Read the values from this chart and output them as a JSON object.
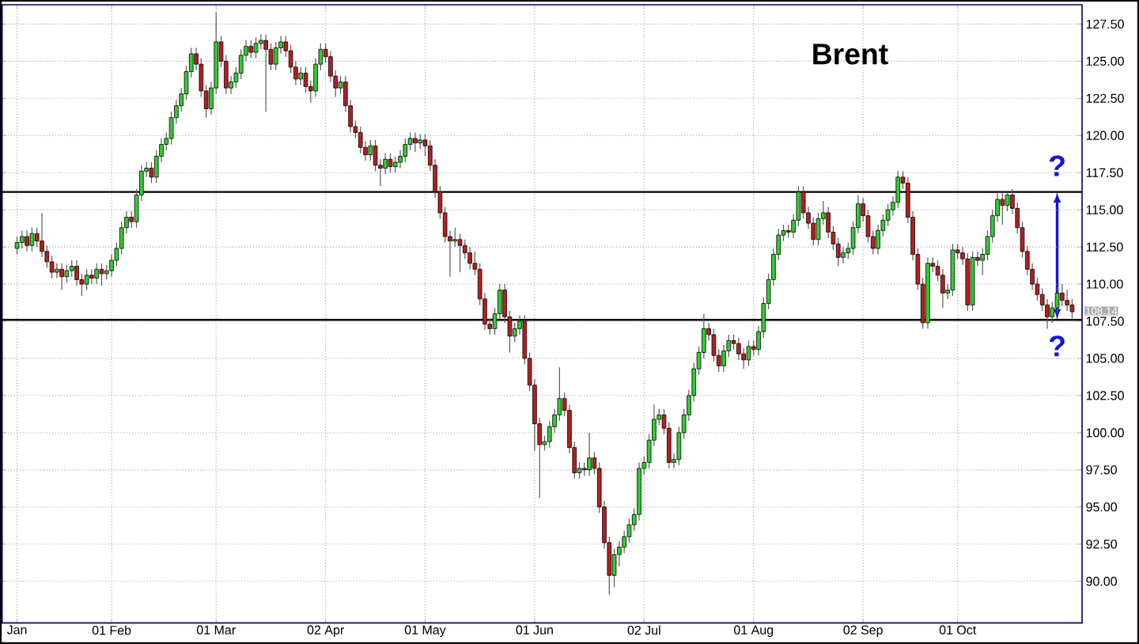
{
  "chart_data": {
    "type": "candlestick",
    "title": "Brent",
    "categories": [
      "Jan",
      null,
      null,
      null,
      null,
      null,
      null,
      null,
      null,
      null,
      null,
      null,
      null,
      null,
      null,
      null,
      null,
      null,
      null,
      "01 Feb",
      null,
      null,
      null,
      null,
      null,
      null,
      null,
      null,
      null,
      null,
      null,
      null,
      null,
      null,
      null,
      null,
      null,
      null,
      null,
      null,
      "01 Mar",
      null,
      null,
      null,
      null,
      null,
      null,
      null,
      null,
      null,
      null,
      null,
      null,
      null,
      null,
      null,
      null,
      null,
      null,
      null,
      null,
      null,
      "02 Apr",
      null,
      null,
      null,
      null,
      null,
      null,
      null,
      null,
      null,
      null,
      null,
      null,
      null,
      null,
      null,
      null,
      null,
      null,
      null,
      "01 May",
      null,
      null,
      null,
      null,
      null,
      null,
      null,
      null,
      null,
      null,
      null,
      null,
      null,
      null,
      null,
      null,
      null,
      null,
      null,
      null,
      null,
      "01 Jun",
      null,
      null,
      null,
      null,
      null,
      null,
      null,
      null,
      null,
      null,
      null,
      null,
      null,
      null,
      null,
      null,
      null,
      null,
      null,
      null,
      null,
      "02 Jul",
      null,
      null,
      null,
      null,
      null,
      null,
      null,
      null,
      null,
      null,
      null,
      null,
      null,
      null,
      null,
      null,
      null,
      null,
      null,
      null,
      null,
      "01 Aug",
      null,
      null,
      null,
      null,
      null,
      null,
      null,
      null,
      null,
      null,
      null,
      null,
      null,
      null,
      null,
      null,
      null,
      null,
      null,
      null,
      null,
      "02 Sep",
      null,
      null,
      null,
      null,
      null,
      null,
      null,
      null,
      null,
      null,
      null,
      null,
      null,
      null,
      null,
      null,
      null,
      null,
      "01 Oct",
      null,
      null,
      null,
      null,
      null,
      null,
      null,
      null,
      null,
      null,
      null,
      null,
      null,
      null,
      null,
      null,
      null,
      null,
      null,
      null,
      null,
      null,
      null
    ],
    "ohlc": [
      [
        112.4,
        113.2,
        112.0,
        112.8
      ],
      [
        112.8,
        113.6,
        112.4,
        113.2
      ],
      [
        113.2,
        113.6,
        112.2,
        112.6
      ],
      [
        112.6,
        113.8,
        112.2,
        113.4
      ],
      [
        113.4,
        113.8,
        112.5,
        112.9
      ],
      [
        112.9,
        114.8,
        111.8,
        112.2
      ],
      [
        112.2,
        112.6,
        111.1,
        111.5
      ],
      [
        111.5,
        111.9,
        110.4,
        110.8
      ],
      [
        110.8,
        111.4,
        110.4,
        111.0
      ],
      [
        111.0,
        111.4,
        109.6,
        110.5
      ],
      [
        110.5,
        111.3,
        110.1,
        110.9
      ],
      [
        110.9,
        111.6,
        110.5,
        111.2
      ],
      [
        111.2,
        111.6,
        109.9,
        110.3
      ],
      [
        110.3,
        110.7,
        109.2,
        110.0
      ],
      [
        110.0,
        111.0,
        109.6,
        110.6
      ],
      [
        110.6,
        111.0,
        110.0,
        110.4
      ],
      [
        110.4,
        111.4,
        110.0,
        111.0
      ],
      [
        111.0,
        111.4,
        109.9,
        110.7
      ],
      [
        110.7,
        111.3,
        110.3,
        110.9
      ],
      [
        110.9,
        112.0,
        110.5,
        111.6
      ],
      [
        111.6,
        112.8,
        111.2,
        112.4
      ],
      [
        112.4,
        114.2,
        112.0,
        113.8
      ],
      [
        113.8,
        114.9,
        113.4,
        114.5
      ],
      [
        114.5,
        114.9,
        113.8,
        114.2
      ],
      [
        114.2,
        116.4,
        113.8,
        116.0
      ],
      [
        116.0,
        118.0,
        115.6,
        117.6
      ],
      [
        117.6,
        118.2,
        117.2,
        117.8
      ],
      [
        117.8,
        118.2,
        116.8,
        117.2
      ],
      [
        117.2,
        119.0,
        116.8,
        118.6
      ],
      [
        118.6,
        119.8,
        118.2,
        119.4
      ],
      [
        119.4,
        120.2,
        119.0,
        119.8
      ],
      [
        119.8,
        121.6,
        119.4,
        121.2
      ],
      [
        121.2,
        122.4,
        120.8,
        122.0
      ],
      [
        122.0,
        123.2,
        121.6,
        122.8
      ],
      [
        122.8,
        124.7,
        122.4,
        124.3
      ],
      [
        124.3,
        125.9,
        123.9,
        125.5
      ],
      [
        125.5,
        125.9,
        124.4,
        124.8
      ],
      [
        124.8,
        125.2,
        122.6,
        123.0
      ],
      [
        123.0,
        123.4,
        121.2,
        121.8
      ],
      [
        121.8,
        123.6,
        121.4,
        123.2
      ],
      [
        123.2,
        128.3,
        122.8,
        126.3
      ],
      [
        126.3,
        126.7,
        124.6,
        125.0
      ],
      [
        125.0,
        125.4,
        122.8,
        123.2
      ],
      [
        123.2,
        124.0,
        122.8,
        123.6
      ],
      [
        123.6,
        124.6,
        123.2,
        124.2
      ],
      [
        124.2,
        125.8,
        123.8,
        125.4
      ],
      [
        125.4,
        126.4,
        125.0,
        126.0
      ],
      [
        126.0,
        126.4,
        125.2,
        125.6
      ],
      [
        125.6,
        126.6,
        125.2,
        126.2
      ],
      [
        126.2,
        126.8,
        125.8,
        126.4
      ],
      [
        126.4,
        126.8,
        121.6,
        125.8
      ],
      [
        125.8,
        126.2,
        124.4,
        124.8
      ],
      [
        124.8,
        126.3,
        124.4,
        125.9
      ],
      [
        125.9,
        126.7,
        125.5,
        126.3
      ],
      [
        126.3,
        126.7,
        125.3,
        125.7
      ],
      [
        125.7,
        126.1,
        124.2,
        124.6
      ],
      [
        124.6,
        125.0,
        123.4,
        123.8
      ],
      [
        123.8,
        124.6,
        123.4,
        124.2
      ],
      [
        124.2,
        124.6,
        122.9,
        123.3
      ],
      [
        123.3,
        123.7,
        122.2,
        123.0
      ],
      [
        123.0,
        125.2,
        122.6,
        124.8
      ],
      [
        124.8,
        126.2,
        124.4,
        125.8
      ],
      [
        125.8,
        126.2,
        124.9,
        125.3
      ],
      [
        125.3,
        125.7,
        123.6,
        124.0
      ],
      [
        124.0,
        124.4,
        122.6,
        123.2
      ],
      [
        123.2,
        124.0,
        122.8,
        123.6
      ],
      [
        123.6,
        124.0,
        121.6,
        122.0
      ],
      [
        122.0,
        122.4,
        120.2,
        120.6
      ],
      [
        120.6,
        121.0,
        119.8,
        120.2
      ],
      [
        120.2,
        120.6,
        118.8,
        119.2
      ],
      [
        119.2,
        119.6,
        118.3,
        118.7
      ],
      [
        118.7,
        119.7,
        118.3,
        119.3
      ],
      [
        119.3,
        119.7,
        117.6,
        118.0
      ],
      [
        118.0,
        118.4,
        116.6,
        117.8
      ],
      [
        117.8,
        118.8,
        117.4,
        118.4
      ],
      [
        118.4,
        118.8,
        117.5,
        117.9
      ],
      [
        117.9,
        118.6,
        117.5,
        118.2
      ],
      [
        118.2,
        119.0,
        117.8,
        118.6
      ],
      [
        118.6,
        119.8,
        118.2,
        119.4
      ],
      [
        119.4,
        120.2,
        119.0,
        119.8
      ],
      [
        119.8,
        120.2,
        118.9,
        119.5
      ],
      [
        119.5,
        120.1,
        119.1,
        119.7
      ],
      [
        119.7,
        120.1,
        118.6,
        119.3
      ],
      [
        119.3,
        119.7,
        117.6,
        118.0
      ],
      [
        118.0,
        118.4,
        115.8,
        116.2
      ],
      [
        116.2,
        116.6,
        114.4,
        114.8
      ],
      [
        114.8,
        115.2,
        112.8,
        113.2
      ],
      [
        113.2,
        113.6,
        110.5,
        112.9
      ],
      [
        112.9,
        113.8,
        112.5,
        113.0
      ],
      [
        113.0,
        113.4,
        110.8,
        112.6
      ],
      [
        112.6,
        113.0,
        111.7,
        112.1
      ],
      [
        112.1,
        112.5,
        111.0,
        111.4
      ],
      [
        111.4,
        112.2,
        110.6,
        111.0
      ],
      [
        111.0,
        111.4,
        108.6,
        109.0
      ],
      [
        109.0,
        109.4,
        106.9,
        107.3
      ],
      [
        107.3,
        107.7,
        106.6,
        107.0
      ],
      [
        107.0,
        108.4,
        106.6,
        108.0
      ],
      [
        108.0,
        110.0,
        107.6,
        109.6
      ],
      [
        109.6,
        110.0,
        107.4,
        107.8
      ],
      [
        107.8,
        108.2,
        105.4,
        106.5
      ],
      [
        106.5,
        107.4,
        106.1,
        107.0
      ],
      [
        107.0,
        107.9,
        106.6,
        107.5
      ],
      [
        107.5,
        107.9,
        104.6,
        105.0
      ],
      [
        105.0,
        105.4,
        102.8,
        103.2
      ],
      [
        103.2,
        103.6,
        98.8,
        100.6
      ],
      [
        100.6,
        101.0,
        95.6,
        99.2
      ],
      [
        99.2,
        99.8,
        98.8,
        99.4
      ],
      [
        99.4,
        100.8,
        99.0,
        100.4
      ],
      [
        100.4,
        101.6,
        100.0,
        101.2
      ],
      [
        101.2,
        104.4,
        100.8,
        102.3
      ],
      [
        102.3,
        102.7,
        101.1,
        101.5
      ],
      [
        101.5,
        101.9,
        98.6,
        99.0
      ],
      [
        99.0,
        99.4,
        96.9,
        97.3
      ],
      [
        97.3,
        98.0,
        96.9,
        97.6
      ],
      [
        97.6,
        98.0,
        97.1,
        97.5
      ],
      [
        97.5,
        100.0,
        97.1,
        98.3
      ],
      [
        98.3,
        98.7,
        97.2,
        97.6
      ],
      [
        97.6,
        98.0,
        94.6,
        95.0
      ],
      [
        95.0,
        95.4,
        92.2,
        92.6
      ],
      [
        92.6,
        93.0,
        89.1,
        90.4
      ],
      [
        90.4,
        92.2,
        89.6,
        91.8
      ],
      [
        91.8,
        92.7,
        91.0,
        92.3
      ],
      [
        92.3,
        93.4,
        91.9,
        93.0
      ],
      [
        93.0,
        94.2,
        92.6,
        93.8
      ],
      [
        93.8,
        94.9,
        93.4,
        94.5
      ],
      [
        94.5,
        98.0,
        94.1,
        97.6
      ],
      [
        97.6,
        98.4,
        97.2,
        98.0
      ],
      [
        98.0,
        99.9,
        97.6,
        99.5
      ],
      [
        99.5,
        101.9,
        99.1,
        100.9
      ],
      [
        100.9,
        101.6,
        100.5,
        101.2
      ],
      [
        101.2,
        101.6,
        99.9,
        100.3
      ],
      [
        100.3,
        100.7,
        97.6,
        98.0
      ],
      [
        98.0,
        98.6,
        97.6,
        98.2
      ],
      [
        98.2,
        100.4,
        97.8,
        100.0
      ],
      [
        100.0,
        101.6,
        99.6,
        101.2
      ],
      [
        101.2,
        102.9,
        100.8,
        102.5
      ],
      [
        102.5,
        104.7,
        102.1,
        104.3
      ],
      [
        104.3,
        105.8,
        103.9,
        105.4
      ],
      [
        105.4,
        108.0,
        105.0,
        107.0
      ],
      [
        107.0,
        107.4,
        106.2,
        106.6
      ],
      [
        106.6,
        107.0,
        104.8,
        105.2
      ],
      [
        105.2,
        105.6,
        104.1,
        104.5
      ],
      [
        104.5,
        105.9,
        104.1,
        105.5
      ],
      [
        105.5,
        106.6,
        105.1,
        106.2
      ],
      [
        106.2,
        106.6,
        105.6,
        106.0
      ],
      [
        106.0,
        106.4,
        104.9,
        105.3
      ],
      [
        105.3,
        105.7,
        104.3,
        104.9
      ],
      [
        104.9,
        106.2,
        104.5,
        105.8
      ],
      [
        105.8,
        106.2,
        105.2,
        105.6
      ],
      [
        105.6,
        107.2,
        105.2,
        106.8
      ],
      [
        106.8,
        109.1,
        106.4,
        108.7
      ],
      [
        108.7,
        110.7,
        108.3,
        110.3
      ],
      [
        110.3,
        112.4,
        109.9,
        112.0
      ],
      [
        112.0,
        113.7,
        111.6,
        113.3
      ],
      [
        113.3,
        114.0,
        112.9,
        113.6
      ],
      [
        113.6,
        114.0,
        113.1,
        113.5
      ],
      [
        113.5,
        114.7,
        113.1,
        114.3
      ],
      [
        114.3,
        116.6,
        113.9,
        116.2
      ],
      [
        116.2,
        116.6,
        114.4,
        114.8
      ],
      [
        114.8,
        115.2,
        113.7,
        114.1
      ],
      [
        114.1,
        114.5,
        112.6,
        113.0
      ],
      [
        113.0,
        114.8,
        112.6,
        114.4
      ],
      [
        114.4,
        115.6,
        114.0,
        114.8
      ],
      [
        114.8,
        115.2,
        113.1,
        113.5
      ],
      [
        113.5,
        113.9,
        112.3,
        112.7
      ],
      [
        112.7,
        113.1,
        111.2,
        111.8
      ],
      [
        111.8,
        112.5,
        111.4,
        112.1
      ],
      [
        112.1,
        112.8,
        111.7,
        112.4
      ],
      [
        112.4,
        114.2,
        112.0,
        113.8
      ],
      [
        113.8,
        116.0,
        113.4,
        115.4
      ],
      [
        115.4,
        115.8,
        114.2,
        114.6
      ],
      [
        114.6,
        115.0,
        112.8,
        113.2
      ],
      [
        113.2,
        113.6,
        112.0,
        112.4
      ],
      [
        112.4,
        114.0,
        112.0,
        113.6
      ],
      [
        113.6,
        114.7,
        113.2,
        114.3
      ],
      [
        114.3,
        115.4,
        113.9,
        115.0
      ],
      [
        115.0,
        115.9,
        114.6,
        115.5
      ],
      [
        115.5,
        117.6,
        115.1,
        117.2
      ],
      [
        117.2,
        117.6,
        116.4,
        116.8
      ],
      [
        116.8,
        117.2,
        114.1,
        114.5
      ],
      [
        114.5,
        114.9,
        111.6,
        112.0
      ],
      [
        112.0,
        112.4,
        109.6,
        110.0
      ],
      [
        110.0,
        110.4,
        107.0,
        107.4
      ],
      [
        107.4,
        111.8,
        107.0,
        111.4
      ],
      [
        111.4,
        111.8,
        110.8,
        111.2
      ],
      [
        111.2,
        111.6,
        110.2,
        110.6
      ],
      [
        110.6,
        111.0,
        108.4,
        109.4
      ],
      [
        109.4,
        110.0,
        109.0,
        109.6
      ],
      [
        109.6,
        112.7,
        109.2,
        112.3
      ],
      [
        112.3,
        112.7,
        111.7,
        112.1
      ],
      [
        112.1,
        112.5,
        111.3,
        111.7
      ],
      [
        111.7,
        112.1,
        108.2,
        108.6
      ],
      [
        108.6,
        112.2,
        108.2,
        111.8
      ],
      [
        111.8,
        112.2,
        111.2,
        111.6
      ],
      [
        111.6,
        112.4,
        110.6,
        112.0
      ],
      [
        112.0,
        113.6,
        111.6,
        113.2
      ],
      [
        113.2,
        115.0,
        112.8,
        114.6
      ],
      [
        114.6,
        116.1,
        114.2,
        115.7
      ],
      [
        115.7,
        116.1,
        114.0,
        115.3
      ],
      [
        115.3,
        116.2,
        114.9,
        116.0
      ],
      [
        116.0,
        116.4,
        114.7,
        115.1
      ],
      [
        115.1,
        115.5,
        113.4,
        113.8
      ],
      [
        113.8,
        114.2,
        111.8,
        112.2
      ],
      [
        112.2,
        112.6,
        110.6,
        111.0
      ],
      [
        111.0,
        111.4,
        109.6,
        110.0
      ],
      [
        110.0,
        110.4,
        108.9,
        109.3
      ],
      [
        109.3,
        109.7,
        108.2,
        108.6
      ],
      [
        108.6,
        109.0,
        107.0,
        107.8
      ],
      [
        107.8,
        108.8,
        107.4,
        108.4
      ],
      [
        108.4,
        109.8,
        108.0,
        109.4
      ],
      [
        109.4,
        110.0,
        108.5,
        108.9
      ],
      [
        108.9,
        109.6,
        108.2,
        108.6
      ],
      [
        108.6,
        109.0,
        107.7,
        108.14
      ]
    ],
    "ylim": [
      87.2,
      128.8
    ],
    "yticks": [
      {
        "value": 90,
        "label": "90.00"
      },
      {
        "value": 92.5,
        "label": "92.50"
      },
      {
        "value": 95,
        "label": "95.00"
      },
      {
        "value": 97.5,
        "label": "97.50"
      },
      {
        "value": 100,
        "label": "100.00"
      },
      {
        "value": 102.5,
        "label": "102.50"
      },
      {
        "value": 105,
        "label": "105.00"
      },
      {
        "value": 107.5,
        "label": "107.50"
      },
      {
        "value": 110,
        "label": "110.00"
      },
      {
        "value": 112.5,
        "label": "112.50"
      },
      {
        "value": 115,
        "label": "115.00"
      },
      {
        "value": 117.5,
        "label": "117.50"
      },
      {
        "value": 120,
        "label": "120.00"
      },
      {
        "value": 122.5,
        "label": "122.50"
      },
      {
        "value": 125,
        "label": "125.00"
      },
      {
        "value": 127.5,
        "label": "127.50"
      }
    ],
    "grid": true,
    "ref_lines": [
      {
        "axis": "y",
        "value": 107.6,
        "color": "#000000"
      },
      {
        "axis": "y",
        "value": 116.2,
        "color": "#000000"
      }
    ],
    "annotations": [
      {
        "text": "?",
        "y": 116.2
      },
      {
        "text": "?",
        "y": 107.6
      },
      "108.14"
    ]
  }
}
